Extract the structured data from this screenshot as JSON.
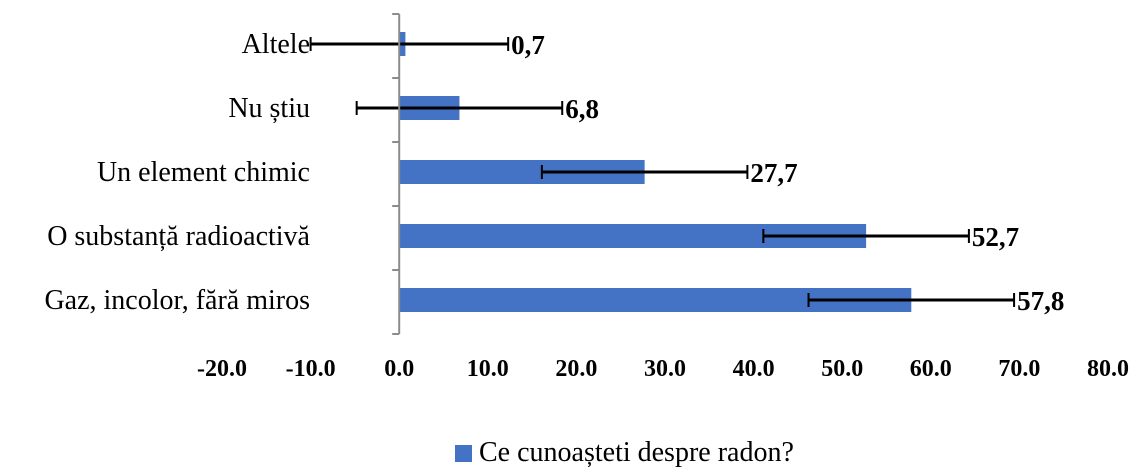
{
  "chart_data": {
    "type": "bar",
    "orientation": "horizontal",
    "categories": [
      "Altele",
      "Nu știu",
      "Un element chimic",
      "O substanță radioactivă",
      "Gaz, incolor, fără miros"
    ],
    "series": [
      {
        "name": "Ce cunoașteti despre radon?",
        "color": "#4472C4",
        "values": [
          0.7,
          6.8,
          27.7,
          52.7,
          57.8
        ],
        "value_labels": [
          "0,7",
          "6,8",
          "27,7",
          "52,7",
          "57,8"
        ],
        "error_minus": [
          10.7,
          11.6,
          11.6,
          11.6,
          11.6
        ],
        "error_plus": [
          11.6,
          11.6,
          11.6,
          11.6,
          11.6
        ]
      }
    ],
    "xlim": [
      -20,
      80
    ],
    "x_ticks": [
      -20,
      -10,
      0,
      10,
      20,
      30,
      40,
      50,
      60,
      70,
      80
    ],
    "x_tick_labels": [
      "-20.0",
      "-10.0",
      "0.0",
      "10.0",
      "20.0",
      "30.0",
      "40.0",
      "50.0",
      "60.0",
      "70.0",
      "80.0"
    ],
    "grid": false,
    "legend_position": "bottom",
    "title": "",
    "xlabel": "",
    "ylabel": ""
  }
}
